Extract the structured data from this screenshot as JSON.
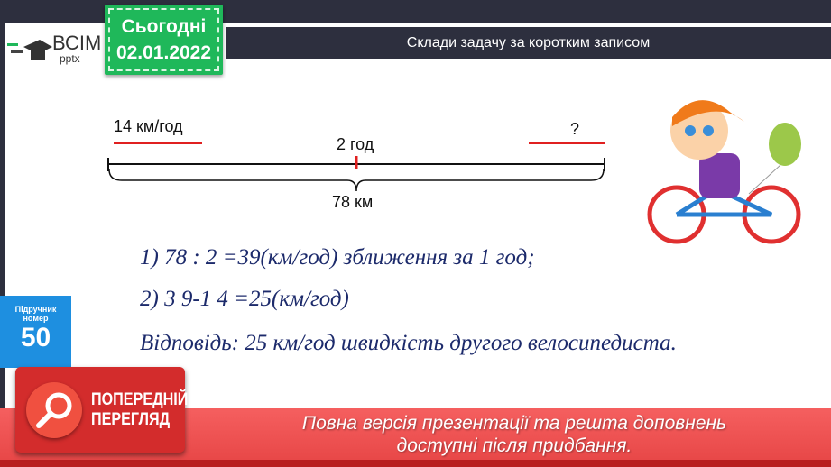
{
  "logo": {
    "name": "ВСІМ",
    "sub": "pptx"
  },
  "date": {
    "label": "Сьогодні",
    "value": "02.01.2022"
  },
  "header": {
    "title": "Склади задачу за коротким записом"
  },
  "diagram": {
    "speed1": "14  км/год",
    "speed2": "?",
    "time": "2 год",
    "distance": "78 км"
  },
  "solution": {
    "step1": "1)    78 : 2 =39(км/год) зближення за 1 год;",
    "step2": "2)    3 9-1 4 =25(км/год)",
    "answer": "Відповідь:  25  км/год швидкість другого велосипедиста."
  },
  "textbook": {
    "label1": "Підручник",
    "label2": "номер",
    "number": "50"
  },
  "preview": {
    "line1": "ПОПЕРЕДНІЙ",
    "line2": "ПЕРЕГЛЯД"
  },
  "banner": {
    "line1": "Повна версія презентації та решта доповнень",
    "line2": "доступні після придбання."
  },
  "colors": {
    "accent_green": "#1fb85a",
    "banner_red": "#f05a5a",
    "formula_blue": "#1c2a6b",
    "side_blue": "#1e8fe0"
  }
}
